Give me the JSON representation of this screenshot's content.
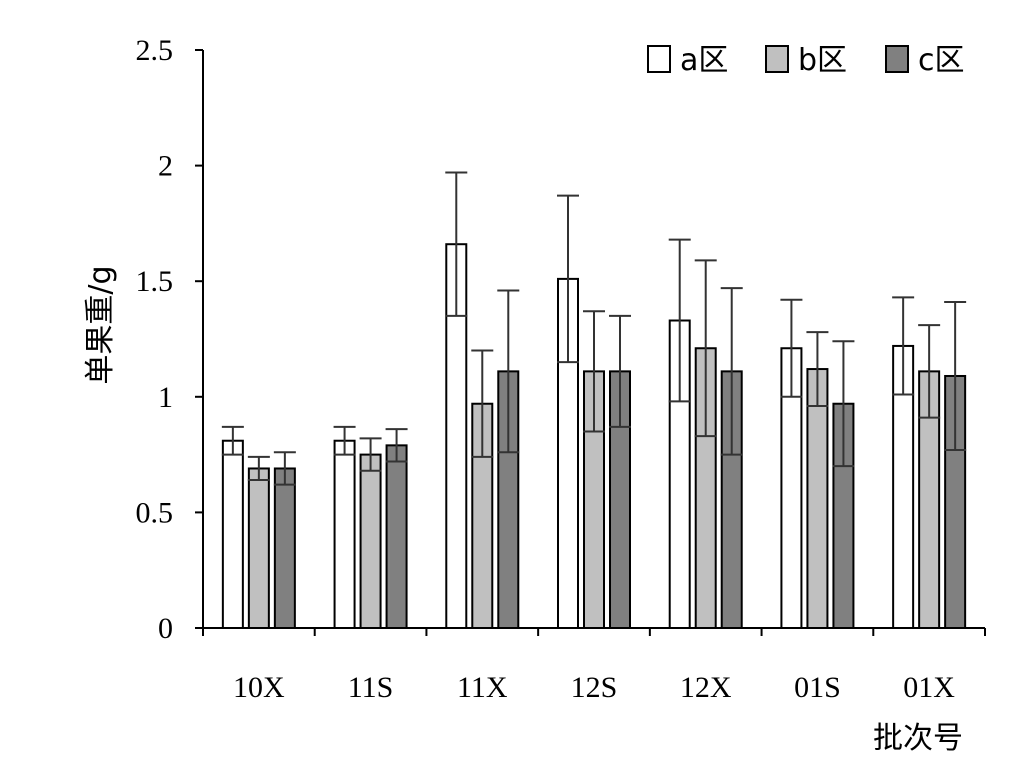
{
  "chart_data": {
    "type": "bar",
    "title": "",
    "xlabel": "批次号",
    "ylabel": "单果重/g",
    "ylim": [
      0,
      2.5
    ],
    "yticks": [
      "0",
      "0.5",
      "1",
      "1.5",
      "2",
      "2.5"
    ],
    "ytick_values": [
      0,
      0.5,
      1,
      1.5,
      2,
      2.5
    ],
    "categories": [
      "10X",
      "11S",
      "11X",
      "12S",
      "12X",
      "01S",
      "01X"
    ],
    "series": [
      {
        "name": "a区",
        "color": "#ffffff",
        "values": [
          0.81,
          0.81,
          1.66,
          1.51,
          1.33,
          1.21,
          1.22
        ],
        "errors": [
          0.06,
          0.06,
          0.31,
          0.36,
          0.35,
          0.21,
          0.21
        ]
      },
      {
        "name": "b区",
        "color": "#c0c0c0",
        "values": [
          0.69,
          0.75,
          0.97,
          1.11,
          1.21,
          1.12,
          1.11
        ],
        "errors": [
          0.05,
          0.07,
          0.23,
          0.26,
          0.38,
          0.16,
          0.2
        ]
      },
      {
        "name": "c区",
        "color": "#808080",
        "values": [
          0.69,
          0.79,
          1.11,
          1.11,
          1.11,
          0.97,
          1.09
        ],
        "errors": [
          0.07,
          0.07,
          0.35,
          0.24,
          0.36,
          0.27,
          0.32
        ]
      }
    ],
    "legend_position": "top-right",
    "grid": false
  }
}
